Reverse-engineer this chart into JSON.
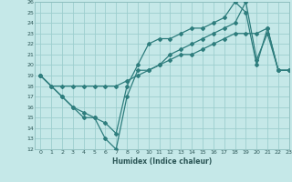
{
  "title": "",
  "xlabel": "Humidex (Indice chaleur)",
  "xlim": [
    -0.5,
    23
  ],
  "ylim": [
    12,
    26
  ],
  "xticks": [
    0,
    1,
    2,
    3,
    4,
    5,
    6,
    7,
    8,
    9,
    10,
    11,
    12,
    13,
    14,
    15,
    16,
    17,
    18,
    19,
    20,
    21,
    22,
    23
  ],
  "yticks": [
    12,
    13,
    14,
    15,
    16,
    17,
    18,
    19,
    20,
    21,
    22,
    23,
    24,
    25,
    26
  ],
  "bg_color": "#c5e8e8",
  "grid_color": "#9dcece",
  "line_color": "#2e7d7d",
  "line1_x": [
    0,
    1,
    2,
    3,
    4,
    5,
    6,
    7,
    8,
    9,
    10,
    11,
    12,
    13,
    14,
    15,
    16,
    17,
    18,
    19,
    20,
    21,
    22,
    23
  ],
  "line1_y": [
    19,
    18,
    17,
    16,
    15,
    15,
    13,
    12,
    17,
    19.5,
    19.5,
    20,
    21,
    21.5,
    22,
    22.5,
    23,
    23.5,
    24,
    26,
    20.5,
    23,
    19.5,
    19.5
  ],
  "line2_x": [
    0,
    2,
    3,
    4,
    5,
    6,
    7,
    8,
    9,
    10,
    11,
    12,
    13,
    14,
    15,
    16,
    17,
    18,
    19,
    20,
    21,
    22,
    23
  ],
  "line2_y": [
    19,
    17,
    16,
    15.5,
    15,
    14.5,
    13.5,
    18,
    20,
    22,
    22.5,
    22.5,
    23,
    23.5,
    23.5,
    24,
    24.5,
    26,
    25,
    20,
    23.5,
    19.5,
    19.5
  ],
  "line3_x": [
    0,
    1,
    2,
    3,
    4,
    5,
    6,
    7,
    8,
    9,
    10,
    11,
    12,
    13,
    14,
    15,
    16,
    17,
    18,
    19,
    20,
    21,
    22,
    23
  ],
  "line3_y": [
    19,
    18,
    18,
    18,
    18,
    18,
    18,
    18,
    18.5,
    19,
    19.5,
    20,
    20.5,
    21,
    21,
    21.5,
    22,
    22.5,
    23,
    23,
    23,
    23.5,
    19.5,
    19.5
  ]
}
